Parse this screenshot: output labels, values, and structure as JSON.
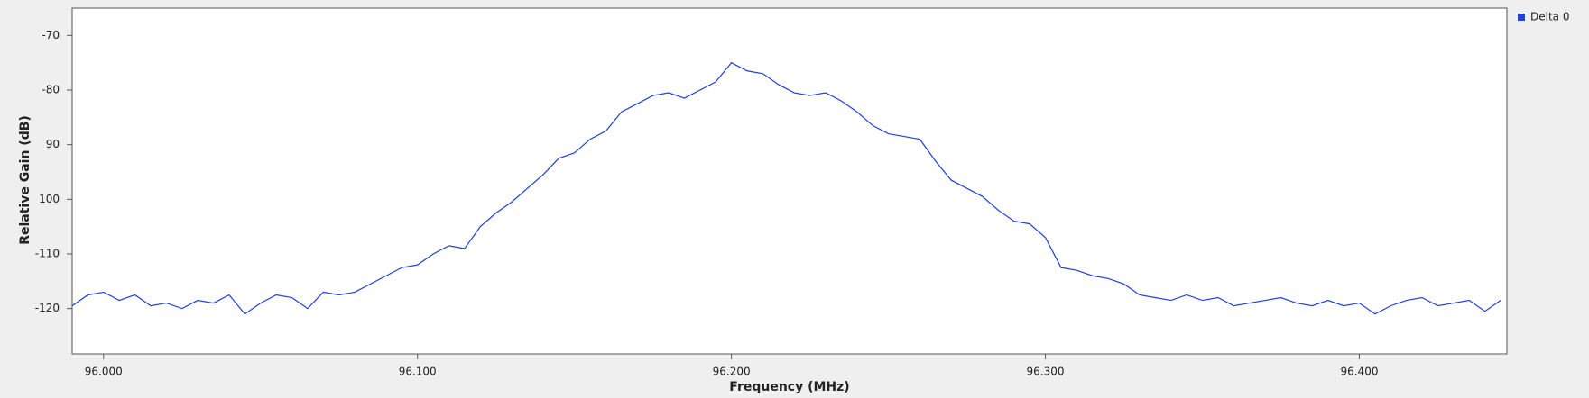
{
  "chart_data": {
    "type": "line",
    "xlabel": "Frequency (MHz)",
    "ylabel": "Relative Gain (dB)",
    "xlim": [
      95.99,
      96.447
    ],
    "ylim": [
      -128.3,
      -65
    ],
    "xticks": [
      {
        "value": 96,
        "label": "96.000"
      },
      {
        "value": 96.1,
        "label": "96.100"
      },
      {
        "value": 96.2,
        "label": "96.200"
      },
      {
        "value": 96.3,
        "label": "96.300"
      },
      {
        "value": 96.4,
        "label": "96.400"
      }
    ],
    "yticks": [
      -70,
      -80,
      {
        "value": -90,
        "label": "90"
      },
      {
        "value": -100,
        "label": "100"
      },
      -110,
      -120
    ],
    "grid": false,
    "legend": "top-right",
    "x": [
      95.99,
      95.995,
      96,
      96.005,
      96.01,
      96.015,
      96.02,
      96.025,
      96.03,
      96.035,
      96.04,
      96.045,
      96.05,
      96.055,
      96.06,
      96.065,
      96.07,
      96.075,
      96.08,
      96.085,
      96.09,
      96.095,
      96.1,
      96.105,
      96.11,
      96.115,
      96.12,
      96.125,
      96.13,
      96.135,
      96.14,
      96.145,
      96.15,
      96.155,
      96.16,
      96.165,
      96.17,
      96.175,
      96.18,
      96.185,
      96.19,
      96.195,
      96.2,
      96.205,
      96.21,
      96.215,
      96.22,
      96.225,
      96.23,
      96.235,
      96.24,
      96.245,
      96.25,
      96.255,
      96.26,
      96.265,
      96.27,
      96.275,
      96.28,
      96.285,
      96.29,
      96.295,
      96.3,
      96.305,
      96.31,
      96.315,
      96.32,
      96.325,
      96.33,
      96.335,
      96.34,
      96.345,
      96.35,
      96.355,
      96.36,
      96.365,
      96.37,
      96.375,
      96.38,
      96.385,
      96.39,
      96.395,
      96.4,
      96.405,
      96.41,
      96.415,
      96.42,
      96.425,
      96.43,
      96.435,
      96.44,
      96.445
    ],
    "series": [
      {
        "name": "Delta 0",
        "color": "#1f3fe0",
        "values": [
          -119.5,
          -117.5,
          -117,
          -118.5,
          -117.5,
          -119.5,
          -119,
          -120,
          -118.5,
          -119,
          -117.5,
          -121,
          -119,
          -117.5,
          -118,
          -120,
          -117,
          -117.5,
          -117,
          -115.5,
          -114,
          -112.5,
          -112,
          -110,
          -108.5,
          -109,
          -105,
          -102.5,
          -100.5,
          -98,
          -95.5,
          -92.5,
          -91.5,
          -89,
          -87.5,
          -84,
          -82.5,
          -81,
          -80.5,
          -81.5,
          -80,
          -78.5,
          -75,
          -76.5,
          -77,
          -79,
          -80.5,
          -81,
          -80.5,
          -82,
          -84,
          -86.5,
          -88,
          -88.5,
          -89,
          -93,
          -96.5,
          -98,
          -99.5,
          -102,
          -104,
          -104.5,
          -107,
          -112.5,
          -113,
          -114,
          -114.5,
          -115.5,
          -117.5,
          -118,
          -118.5,
          -117.5,
          -118.5,
          -118,
          -119.5,
          -119,
          -118.5,
          -118,
          -119,
          -119.5,
          -118.5,
          -119.5,
          -119,
          -121,
          -119.5,
          -118.5,
          -118,
          -119.5,
          -119,
          -118.5,
          -120.5,
          -118.5
        ]
      }
    ]
  }
}
